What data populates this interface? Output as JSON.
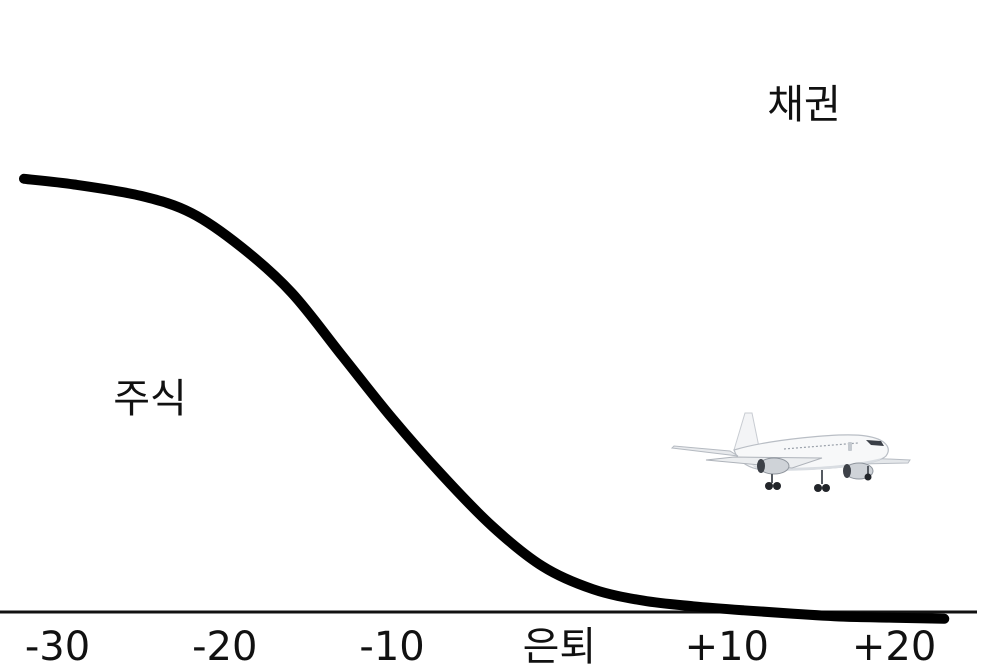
{
  "chart_data": {
    "type": "area",
    "title": "",
    "xlabel": "",
    "ylabel": "",
    "grid": false,
    "legend": "none",
    "x_ticks": [
      "-30",
      "-20",
      "-10",
      "은퇴",
      "+10",
      "+20"
    ],
    "x_tick_values": [
      -30,
      -20,
      -10,
      0,
      10,
      20
    ],
    "xlim": [
      -32,
      24
    ],
    "ylim": [
      0,
      100
    ],
    "series": [
      {
        "x": [
          -32,
          -29,
          -25,
          -22,
          -19,
          -16,
          -13,
          -10,
          -7,
          -4,
          -1,
          2,
          5,
          8,
          11,
          14,
          17,
          20,
          23
        ],
        "values": [
          76,
          75,
          73,
          70,
          64,
          56,
          45,
          34,
          24,
          15,
          8,
          4,
          2,
          1,
          0.3,
          -0.3,
          -0.8,
          -1,
          -1.2
        ]
      }
    ],
    "region_labels": {
      "upper": "채권",
      "lower": "주식"
    },
    "line_color": "#000000",
    "decoration_icon": "airplane-icon"
  }
}
